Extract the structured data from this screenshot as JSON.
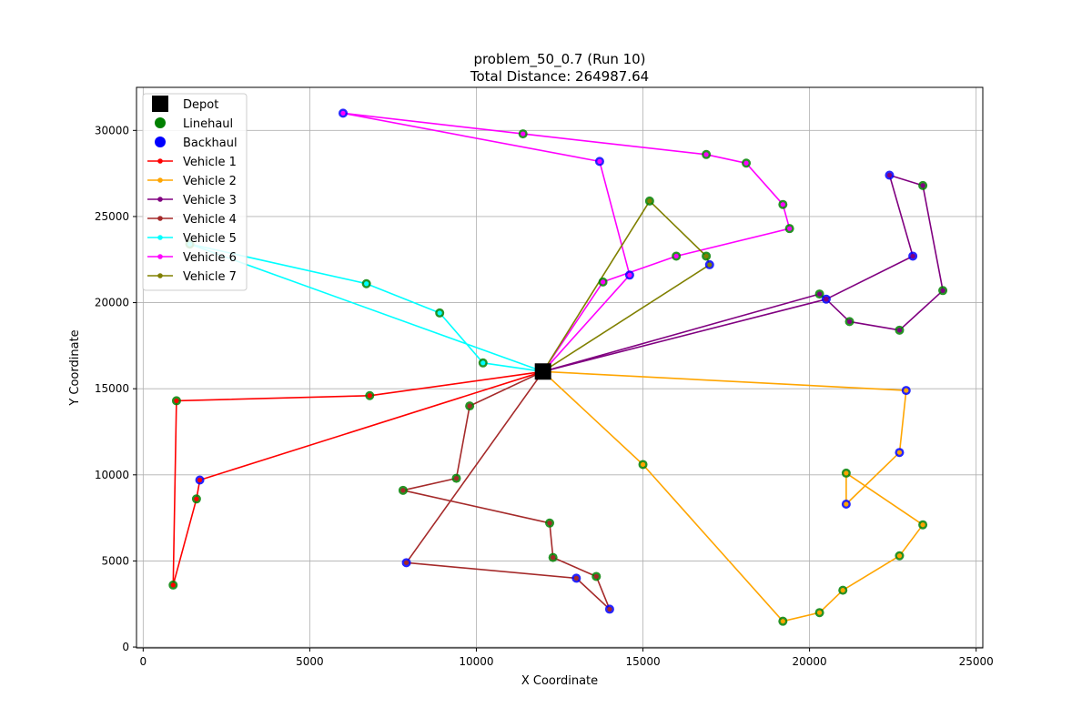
{
  "chart_data": {
    "type": "scatter",
    "title": "problem_50_0.7 (Run 10)",
    "subtitle": "Total Distance: 264987.64",
    "xlabel": "X Coordinate",
    "ylabel": "Y Coordinate",
    "xlim": [
      -200,
      25200
    ],
    "ylim": [
      -50,
      32500
    ],
    "xticks": [
      0,
      5000,
      10000,
      15000,
      20000,
      25000
    ],
    "yticks": [
      0,
      5000,
      10000,
      15000,
      20000,
      25000,
      30000
    ],
    "grid": true,
    "legend": {
      "placement": "top-left",
      "entries": [
        {
          "label": "Depot",
          "kind": "depot",
          "color": "#000000"
        },
        {
          "label": "Linehaul",
          "kind": "linehaul",
          "color": "#008000"
        },
        {
          "label": "Backhaul",
          "kind": "backhaul",
          "color": "#0000ff"
        },
        {
          "label": "Vehicle 1",
          "kind": "route",
          "color": "#ff0000"
        },
        {
          "label": "Vehicle 2",
          "kind": "route",
          "color": "#ffa500"
        },
        {
          "label": "Vehicle 3",
          "kind": "route",
          "color": "#800080"
        },
        {
          "label": "Vehicle 4",
          "kind": "route",
          "color": "#a52a2a"
        },
        {
          "label": "Vehicle 5",
          "kind": "route",
          "color": "#00ffff"
        },
        {
          "label": "Vehicle 6",
          "kind": "route",
          "color": "#ff00ff"
        },
        {
          "label": "Vehicle 7",
          "kind": "route",
          "color": "#808000"
        }
      ]
    },
    "depot": {
      "x": 12000,
      "y": 16000
    },
    "linehaul": [
      [
        6800,
        14600
      ],
      [
        1000,
        14300
      ],
      [
        1600,
        8600
      ],
      [
        900,
        3600
      ],
      [
        15000,
        10600
      ],
      [
        19200,
        1500
      ],
      [
        20300,
        2000
      ],
      [
        21000,
        3300
      ],
      [
        22700,
        5300
      ],
      [
        23400,
        7100
      ],
      [
        21100,
        10100
      ],
      [
        20300,
        20500
      ],
      [
        21200,
        18900
      ],
      [
        22700,
        18400
      ],
      [
        24000,
        20700
      ],
      [
        23400,
        26800
      ],
      [
        9800,
        14000
      ],
      [
        9400,
        9800
      ],
      [
        7800,
        9100
      ],
      [
        12200,
        7200
      ],
      [
        12300,
        5200
      ],
      [
        13600,
        4100
      ],
      [
        10200,
        16500
      ],
      [
        8900,
        19400
      ],
      [
        6700,
        21100
      ],
      [
        1400,
        23400
      ],
      [
        13800,
        21200
      ],
      [
        16000,
        22700
      ],
      [
        19400,
        24300
      ],
      [
        19200,
        25700
      ],
      [
        18100,
        28100
      ],
      [
        16900,
        28600
      ],
      [
        11400,
        29800
      ],
      [
        15200,
        25900
      ],
      [
        16900,
        22700
      ]
    ],
    "backhaul": [
      [
        1700,
        9700
      ],
      [
        22900,
        14900
      ],
      [
        22700,
        11300
      ],
      [
        21100,
        8300
      ],
      [
        20500,
        20200
      ],
      [
        23100,
        22700
      ],
      [
        22400,
        27400
      ],
      [
        7900,
        4900
      ],
      [
        13000,
        4000
      ],
      [
        14000,
        2200
      ],
      [
        14600,
        21600
      ],
      [
        13700,
        28200
      ],
      [
        6000,
        31000
      ],
      [
        17000,
        22200
      ]
    ],
    "routes": [
      {
        "name": "Vehicle 1",
        "color": "#ff0000",
        "points": [
          [
            12000,
            16000
          ],
          [
            6800,
            14600
          ],
          [
            1000,
            14300
          ],
          [
            900,
            3600
          ],
          [
            1600,
            8600
          ],
          [
            1700,
            9700
          ],
          [
            12000,
            16000
          ]
        ]
      },
      {
        "name": "Vehicle 2",
        "color": "#ffa500",
        "points": [
          [
            12000,
            16000
          ],
          [
            15000,
            10600
          ],
          [
            19200,
            1500
          ],
          [
            20300,
            2000
          ],
          [
            21000,
            3300
          ],
          [
            22700,
            5300
          ],
          [
            23400,
            7100
          ],
          [
            21100,
            10100
          ],
          [
            21100,
            8300
          ],
          [
            22700,
            11300
          ],
          [
            22900,
            14900
          ],
          [
            12000,
            16000
          ]
        ]
      },
      {
        "name": "Vehicle 3",
        "color": "#800080",
        "points": [
          [
            12000,
            16000
          ],
          [
            20500,
            20200
          ],
          [
            21200,
            18900
          ],
          [
            22700,
            18400
          ],
          [
            24000,
            20700
          ],
          [
            23400,
            26800
          ],
          [
            22400,
            27400
          ],
          [
            23100,
            22700
          ],
          [
            20500,
            20200
          ],
          [
            20300,
            20500
          ],
          [
            12000,
            16000
          ]
        ]
      },
      {
        "name": "Vehicle 4",
        "color": "#a52a2a",
        "points": [
          [
            12000,
            16000
          ],
          [
            9800,
            14000
          ],
          [
            9400,
            9800
          ],
          [
            7800,
            9100
          ],
          [
            12200,
            7200
          ],
          [
            12300,
            5200
          ],
          [
            13600,
            4100
          ],
          [
            14000,
            2200
          ],
          [
            13000,
            4000
          ],
          [
            7900,
            4900
          ],
          [
            12000,
            16000
          ]
        ]
      },
      {
        "name": "Vehicle 5",
        "color": "#00ffff",
        "points": [
          [
            12000,
            16000
          ],
          [
            10200,
            16500
          ],
          [
            8900,
            19400
          ],
          [
            6700,
            21100
          ],
          [
            1400,
            23400
          ],
          [
            12000,
            16000
          ]
        ]
      },
      {
        "name": "Vehicle 6",
        "color": "#ff00ff",
        "points": [
          [
            12000,
            16000
          ],
          [
            13800,
            21200
          ],
          [
            16000,
            22700
          ],
          [
            19400,
            24300
          ],
          [
            19200,
            25700
          ],
          [
            18100,
            28100
          ],
          [
            16900,
            28600
          ],
          [
            11400,
            29800
          ],
          [
            6000,
            31000
          ],
          [
            13700,
            28200
          ],
          [
            14600,
            21600
          ],
          [
            12000,
            16000
          ]
        ]
      },
      {
        "name": "Vehicle 7",
        "color": "#808000",
        "points": [
          [
            12000,
            16000
          ],
          [
            15200,
            25900
          ],
          [
            16900,
            22700
          ],
          [
            17000,
            22200
          ],
          [
            12000,
            16000
          ]
        ]
      }
    ]
  }
}
